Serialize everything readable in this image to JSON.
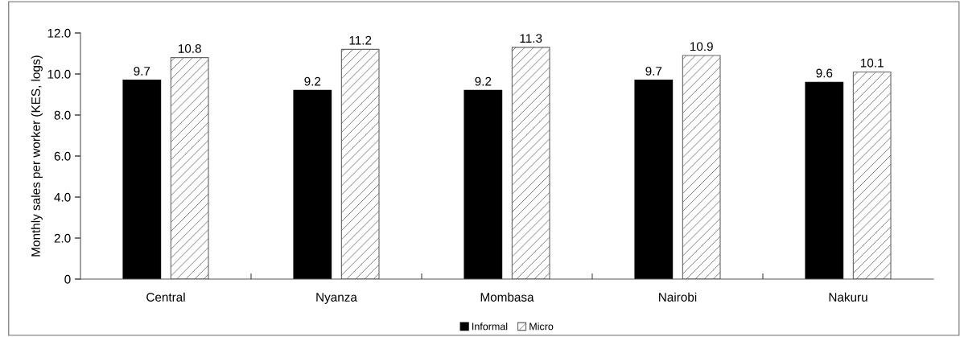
{
  "chart_data": {
    "type": "bar",
    "ylabel": "Monthly sales per worker (KES, logs)",
    "categories": [
      "Central",
      "Nyanza",
      "Mombasa",
      "Nairobi",
      "Nakuru"
    ],
    "series": [
      {
        "name": "Informal",
        "color": "#000000",
        "values": [
          9.7,
          9.2,
          9.2,
          9.7,
          9.6
        ]
      },
      {
        "name": "Micro",
        "color": "#666666",
        "values": [
          10.8,
          11.2,
          11.3,
          10.9,
          10.1
        ]
      }
    ],
    "ylim": [
      0,
      12
    ],
    "yticks": [
      {
        "value": 0,
        "label": "0"
      },
      {
        "value": 2,
        "label": "2.0"
      },
      {
        "value": 4,
        "label": "4.0"
      },
      {
        "value": 6,
        "label": "6.0"
      },
      {
        "value": 8,
        "label": "8.0"
      },
      {
        "value": 10,
        "label": "10.0"
      },
      {
        "value": 12,
        "label": "12.0"
      }
    ],
    "data_labels": true,
    "grid": false,
    "legend": "bottom"
  }
}
